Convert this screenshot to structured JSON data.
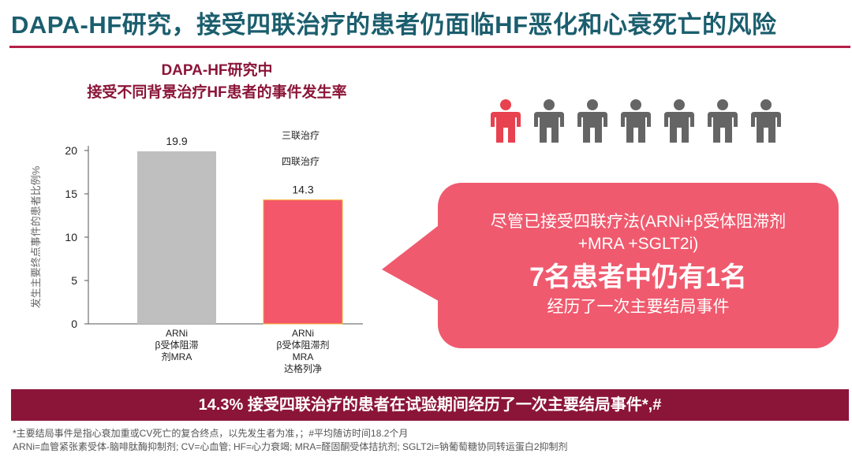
{
  "header": {
    "title": "DAPA-HF研究，接受四联治疗的患者仍面临HF恶化和心衰死亡的风险"
  },
  "chart_data": {
    "type": "bar",
    "title_line1": "DAPA-HF研究中",
    "title_line2": "接受不同背景治疗HF患者的事件发生率",
    "ylabel": "发生主要终点事件的患者比例%",
    "ylim": [
      0,
      20
    ],
    "yticks": [
      "0",
      "5",
      "10",
      "15",
      "20"
    ],
    "legend": [
      "三联治疗",
      "四联治疗"
    ],
    "categories": [
      [
        "ARNi",
        "β受体阻滞",
        "剂MRA"
      ],
      [
        "ARNi",
        "β受体阻滞剂",
        "MRA",
        "达格列净"
      ]
    ],
    "values": [
      19.9,
      14.3
    ],
    "value_labels": [
      "19.9",
      "14.3"
    ],
    "colors": [
      "#bfbfbf",
      "#f4566a"
    ]
  },
  "people": {
    "total": 7,
    "highlighted": 1,
    "highlight_color": "#e8414f",
    "base_color": "#656565"
  },
  "callout": {
    "line1": "尽管已接受四联疗法(ARNi+β受体阻滞剂",
    "line1b": "+MRA +SGLT2i)",
    "headline": "7名患者中仍有1名",
    "line3": "经历了一次主要结局事件",
    "color": "#f05a6e"
  },
  "banner": {
    "text": "14.3% 接受四联治疗的患者在试验期间经历了一次主要结局事件*,#"
  },
  "footnotes": {
    "line1": "*主要结局事件是指心衰加重或CV死亡的复合终点，以先发生者为准，；#平均随访时间18.2个月",
    "line2": "ARNi=血管紧张素受体-脑啡肽酶抑制剂; CV=心血管; HF=心力衰竭; MRA=醛固酮受体拮抗剂; SGLT2i=钠葡萄糖协同转运蛋白2抑制剂"
  }
}
